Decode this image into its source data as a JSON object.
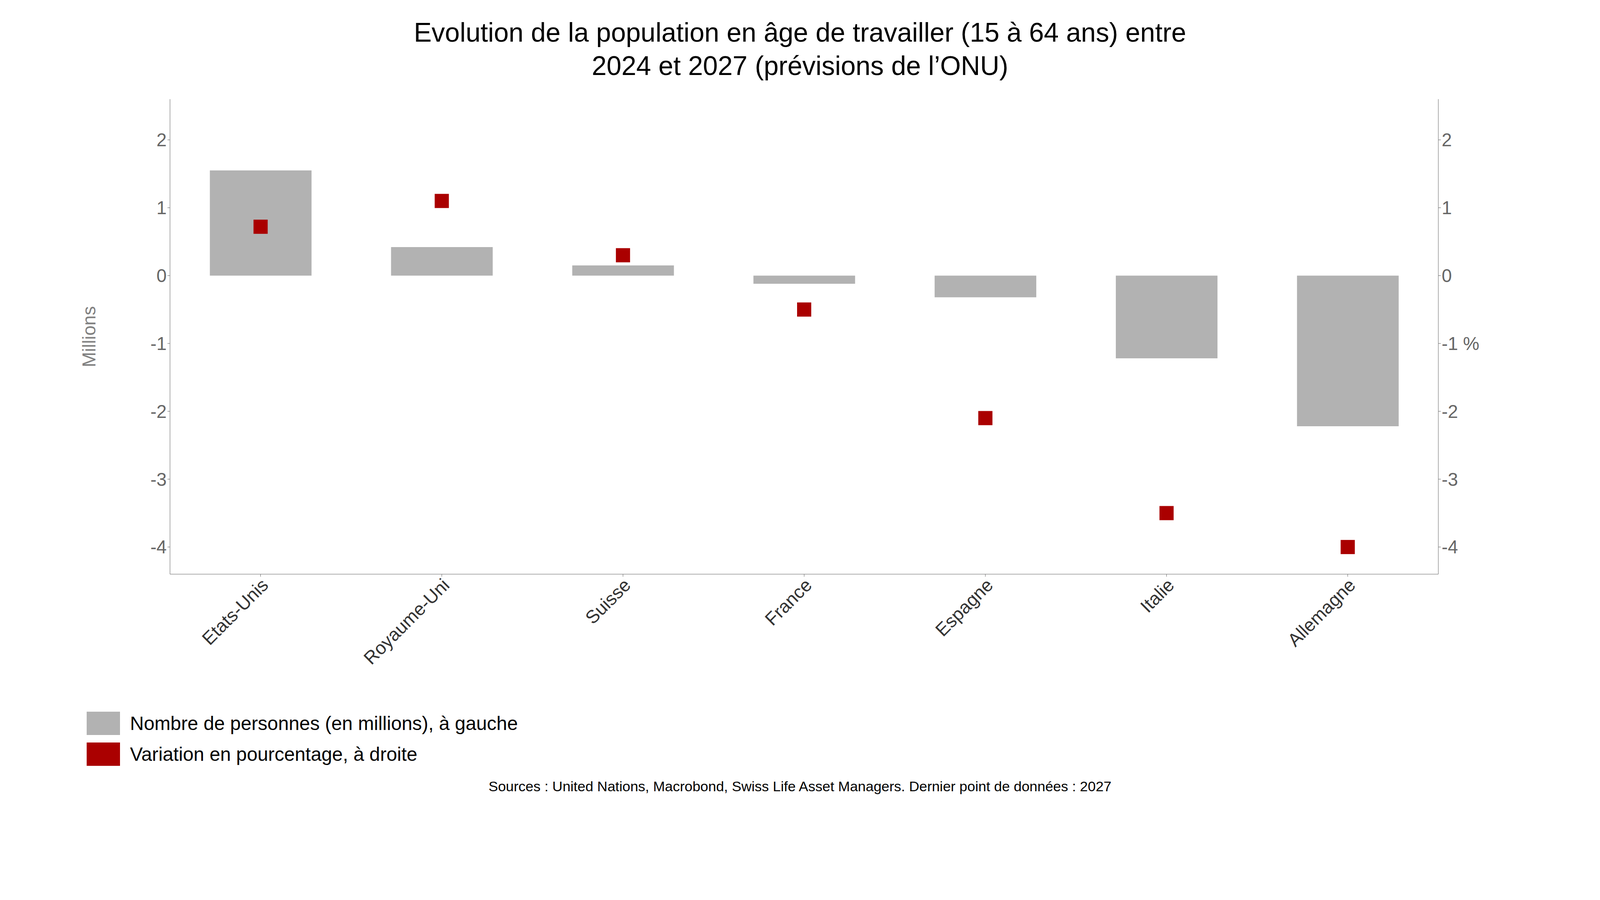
{
  "chart_data": {
    "type": "bar",
    "title": "Evolution de la population en âge de travailler (15 à 64 ans) entre\n2024 et 2027 (prévisions de l’ONU)",
    "source": "Sources : United Nations, Macrobond, Swiss Life Asset Managers. Dernier point de données : 2027",
    "categories": [
      "Etats-Unis",
      "Royaume-Uni",
      "Suisse",
      "France",
      "Espagne",
      "Italie",
      "Allemagne"
    ],
    "series": [
      {
        "name": "Nombre de personnes (en millions), à gauche",
        "type": "bar",
        "color": "#b2b2b2",
        "values": [
          1.55,
          0.42,
          0.15,
          -0.12,
          -0.32,
          -1.22,
          -2.22
        ]
      },
      {
        "name": "Variation en pourcentage, à droite",
        "type": "scatter",
        "marker": "square",
        "color": "#aa0000",
        "axis": "y2",
        "values": [
          0.72,
          1.1,
          0.3,
          -0.5,
          -2.1,
          -3.5,
          -4.0
        ]
      }
    ],
    "ylabel": "Millions",
    "ylim": [
      -4.4,
      2.6
    ],
    "yticks": [
      -4,
      -3,
      -2,
      -1,
      0,
      1,
      2
    ],
    "y2lim": [
      -4.4,
      2.6
    ],
    "y2ticks": [
      -4,
      -3,
      -2,
      {
        "value": -1,
        "label": "-1 %"
      },
      0,
      1,
      2
    ],
    "grid": false,
    "legend": "lower left"
  }
}
